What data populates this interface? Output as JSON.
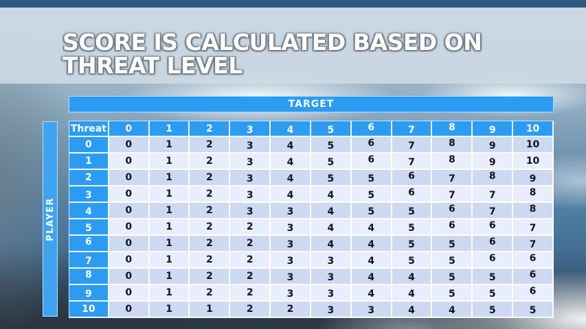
{
  "slide": {
    "title_lines": [
      "SCORE IS CALCULATED BASED ON",
      "THREAT LEVEL"
    ]
  },
  "chart_data": {
    "type": "table",
    "title": "SCORE IS CALCULATED BASED ON THREAT LEVEL",
    "column_axis_label": "TARGET",
    "row_axis_label": "PLAYER",
    "corner_label": "Threat",
    "column_headers": [
      "0",
      "1",
      "2",
      "3",
      "4",
      "5",
      "6",
      "7",
      "8",
      "9",
      "10"
    ],
    "row_headers": [
      "0",
      "1",
      "2",
      "3",
      "4",
      "5",
      "6",
      "7",
      "8",
      "9",
      "10"
    ],
    "rows": [
      [
        0,
        1,
        2,
        3,
        4,
        5,
        6,
        7,
        8,
        9,
        10
      ],
      [
        0,
        1,
        2,
        3,
        4,
        5,
        6,
        7,
        8,
        9,
        10
      ],
      [
        0,
        1,
        2,
        3,
        4,
        5,
        5,
        6,
        7,
        8,
        9
      ],
      [
        0,
        1,
        2,
        3,
        4,
        4,
        5,
        6,
        7,
        7,
        8
      ],
      [
        0,
        1,
        2,
        3,
        3,
        4,
        5,
        5,
        6,
        7,
        8
      ],
      [
        0,
        1,
        2,
        2,
        3,
        4,
        4,
        5,
        6,
        6,
        7
      ],
      [
        0,
        1,
        2,
        2,
        3,
        4,
        4,
        5,
        5,
        6,
        7
      ],
      [
        0,
        1,
        2,
        2,
        3,
        3,
        4,
        5,
        5,
        6,
        6
      ],
      [
        0,
        1,
        2,
        2,
        3,
        3,
        4,
        4,
        5,
        5,
        6
      ],
      [
        0,
        1,
        2,
        2,
        3,
        3,
        4,
        4,
        5,
        5,
        6
      ],
      [
        0,
        1,
        1,
        2,
        2,
        3,
        3,
        4,
        4,
        5,
        5
      ]
    ]
  },
  "colors": {
    "accent_blue": "#2b9cf2",
    "player_bar_blue": "#3ea4f1",
    "row_shade_dark": "#ccd9f1",
    "row_shade_light": "#e8eefb",
    "cell_text": "#13131f",
    "top_bar": "#2b5b83"
  }
}
